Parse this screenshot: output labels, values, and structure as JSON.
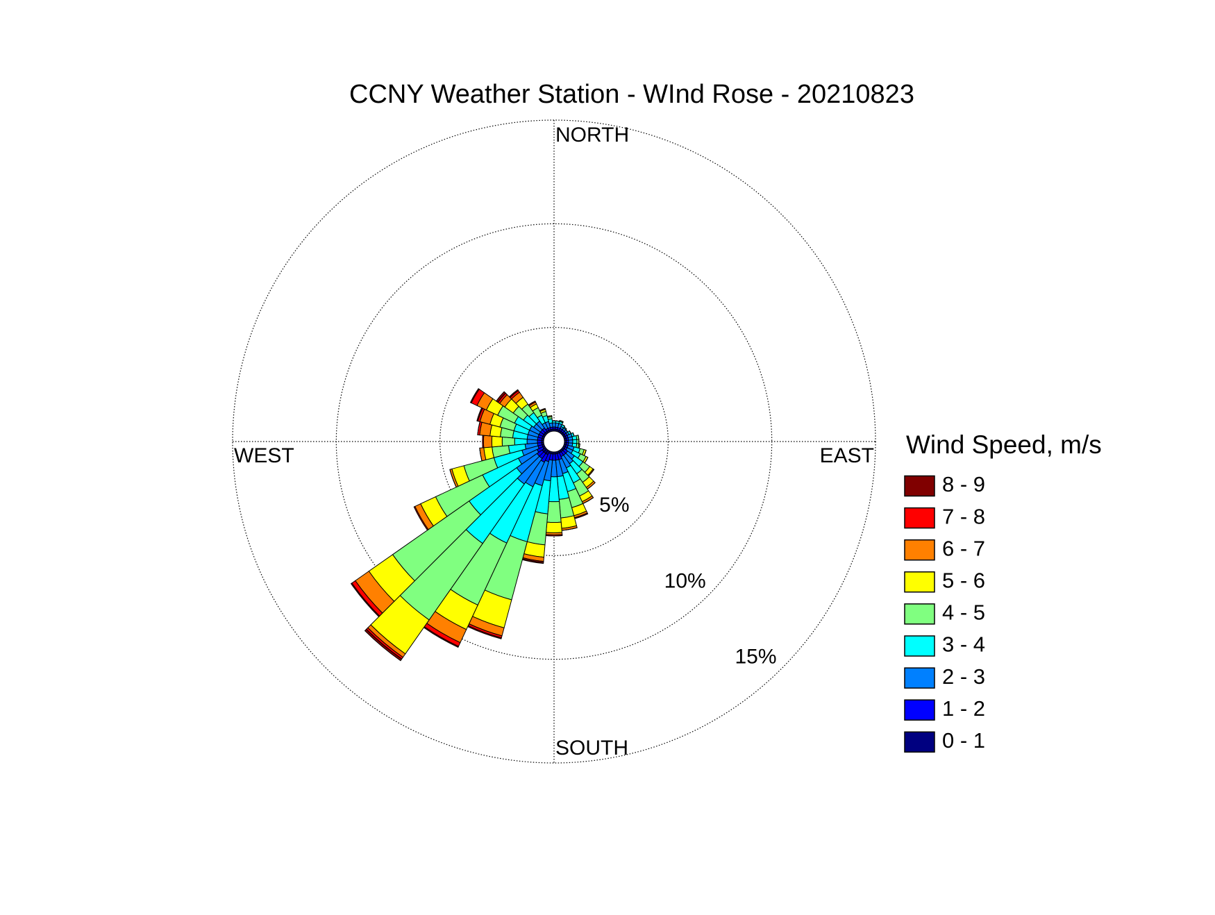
{
  "chart_data": {
    "type": "windrose",
    "title": "CCNY Weather Station - WInd Rose - 20210823",
    "legend_title": "Wind Speed, m/s",
    "direction_labels": [
      "NORTH",
      "EAST",
      "SOUTH",
      "WEST"
    ],
    "x": [
      0,
      10,
      20,
      30,
      40,
      50,
      60,
      70,
      80,
      90,
      100,
      110,
      120,
      130,
      140,
      150,
      160,
      170,
      180,
      190,
      200,
      210,
      220,
      230,
      240,
      250,
      260,
      270,
      280,
      290,
      300,
      310,
      320,
      330,
      340,
      350
    ],
    "rlim": [
      0,
      15
    ],
    "rticks": [
      {
        "value": 5,
        "label": "5%"
      },
      {
        "value": 10,
        "label": "10%"
      },
      {
        "value": 15,
        "label": "15%"
      }
    ],
    "grid": true,
    "series": [
      {
        "name": "0 - 1",
        "color": "#000080",
        "values": [
          0.1,
          0.1,
          0.1,
          0.1,
          0.1,
          0.1,
          0.1,
          0.1,
          0.1,
          0.1,
          0.1,
          0.1,
          0.1,
          0.1,
          0.1,
          0.1,
          0.1,
          0.1,
          0.1,
          0.1,
          0.1,
          0.2,
          0.2,
          0.2,
          0.1,
          0.1,
          0.1,
          0.1,
          0.1,
          0.1,
          0.1,
          0.1,
          0.1,
          0.1,
          0.1,
          0.1
        ]
      },
      {
        "name": "1 - 2",
        "color": "#0000ff",
        "values": [
          0.1,
          0.1,
          0.1,
          0.1,
          0.1,
          0.1,
          0.1,
          0.1,
          0.1,
          0.1,
          0.1,
          0.1,
          0.1,
          0.2,
          0.2,
          0.2,
          0.3,
          0.3,
          0.3,
          0.3,
          0.4,
          0.4,
          0.3,
          0.3,
          0.3,
          0.2,
          0.2,
          0.2,
          0.2,
          0.2,
          0.2,
          0.2,
          0.2,
          0.1,
          0.1,
          0.1
        ]
      },
      {
        "name": "2 - 3",
        "color": "#0080ff",
        "values": [
          0.2,
          0.2,
          0.2,
          0.1,
          0.1,
          0.1,
          0.1,
          0.2,
          0.2,
          0.2,
          0.2,
          0.3,
          0.3,
          0.4,
          0.5,
          0.6,
          0.7,
          0.8,
          0.8,
          1.0,
          1.2,
          1.3,
          1.5,
          1.2,
          1.0,
          0.8,
          0.6,
          0.5,
          0.5,
          0.5,
          0.5,
          0.4,
          0.4,
          0.3,
          0.3,
          0.2
        ]
      },
      {
        "name": "3 - 4",
        "color": "#00ffff",
        "values": [
          0.1,
          0.1,
          0.1,
          0.1,
          0.05,
          0,
          0.1,
          0.1,
          0.2,
          0.2,
          0.2,
          0.3,
          0.4,
          0.5,
          0.6,
          0.8,
          0.9,
          1.1,
          1.2,
          1.6,
          2.8,
          3.0,
          3.5,
          2.8,
          1.9,
          1.4,
          0.8,
          0.6,
          0.7,
          0.7,
          0.8,
          0.6,
          0.5,
          0.4,
          0.3,
          0.2
        ]
      },
      {
        "name": "4 - 5",
        "color": "#80ff80",
        "values": [
          0,
          0,
          0.05,
          0,
          0,
          0,
          0,
          0,
          0.1,
          0.1,
          0.1,
          0.2,
          0.3,
          0.4,
          0.5,
          0.7,
          0.8,
          0.9,
          1.0,
          1.5,
          2.9,
          3.3,
          4.5,
          4.5,
          2.5,
          1.5,
          0.8,
          0.6,
          0.6,
          0.7,
          0.9,
          0.6,
          0.5,
          0.4,
          0.2,
          0.1
        ]
      },
      {
        "name": "5 - 6",
        "color": "#ffff00",
        "values": [
          0,
          0,
          0,
          0,
          0,
          0,
          0,
          0,
          0,
          0,
          0.05,
          0.1,
          0.1,
          0.2,
          0.3,
          0.3,
          0.4,
          0.5,
          0.5,
          0.6,
          1.4,
          1.3,
          2.0,
          1.4,
          0.8,
          0.6,
          0.4,
          0.5,
          0.5,
          0.5,
          0.6,
          0.5,
          0.4,
          0.2,
          0.1,
          0.05
        ]
      },
      {
        "name": "6 - 7",
        "color": "#ff8000",
        "values": [
          0,
          0,
          0,
          0,
          0,
          0,
          0,
          0,
          0,
          0,
          0,
          0,
          0,
          0.05,
          0.1,
          0.1,
          0.1,
          0.1,
          0.1,
          0.2,
          0.4,
          0.7,
          0.2,
          0.8,
          0.3,
          0.1,
          0.2,
          0.4,
          0.5,
          0.5,
          0.5,
          0.3,
          0.3,
          0.1,
          0.05,
          0
        ]
      },
      {
        "name": "7 - 8",
        "color": "#ff0000",
        "values": [
          0,
          0,
          0,
          0,
          0,
          0,
          0,
          0,
          0,
          0,
          0,
          0,
          0,
          0,
          0,
          0,
          0,
          0,
          0.05,
          0.05,
          0.1,
          0.2,
          0.1,
          0.2,
          0.05,
          0,
          0,
          0.05,
          0.1,
          0.1,
          0.3,
          0.1,
          0.1,
          0.05,
          0,
          0
        ]
      },
      {
        "name": "8 - 9",
        "color": "#800000",
        "values": [
          0,
          0,
          0,
          0,
          0,
          0,
          0,
          0,
          0,
          0,
          0,
          0,
          0,
          0,
          0,
          0,
          0.05,
          0,
          0,
          0.05,
          0.05,
          0.05,
          0.1,
          0.05,
          0,
          0,
          0,
          0,
          0,
          0.05,
          0.05,
          0.1,
          0.05,
          0,
          0,
          0
        ]
      }
    ]
  }
}
